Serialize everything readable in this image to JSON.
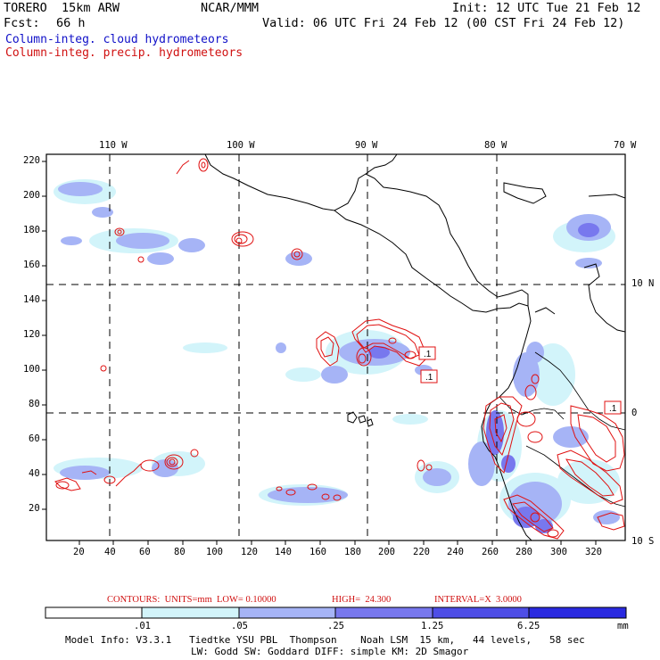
{
  "header": {
    "model": "TORERO  15km ARW",
    "center": "NCAR/MMM",
    "init": "Init: 12 UTC Tue 21 Feb 12",
    "fcst_label": "Fcst:",
    "fcst_value": "66 h",
    "valid": "Valid: 06 UTC Fri 24 Feb 12 (00 CST Fri 24 Feb 12)"
  },
  "fields": {
    "cloud": "Column-integ. cloud hydrometeors",
    "precip": "Column-integ. precip. hydrometeors"
  },
  "map": {
    "lon_labels": [
      "110 W",
      "100 W",
      "90 W",
      "80 W",
      "70 W"
    ],
    "lat_labels": [
      "10 N",
      "0",
      "10 S"
    ],
    "y_ticks": [
      "220",
      "200",
      "180",
      "160",
      "140",
      "120",
      "100",
      "80",
      "60",
      "40",
      "20"
    ],
    "x_ticks": [
      "20",
      "40",
      "60",
      "80",
      "100",
      "120",
      "140",
      "160",
      "180",
      "200",
      "220",
      "240",
      "260",
      "280",
      "300",
      "320"
    ],
    "contour_labels": [
      ".1",
      ".1",
      ".1"
    ]
  },
  "contour_info": {
    "contours": "CONTOURS:  UNITS=mm  LOW= 0.10000",
    "high": "HIGH=  24.300",
    "interval": "INTERVAL=X  3.0000"
  },
  "colorbar": {
    "unit": "mm",
    "levels": [
      ".01",
      ".05",
      ".25",
      "1.25",
      "6.25"
    ],
    "colors": [
      "#ffffff",
      "#d2f4fa",
      "#a6b4f6",
      "#7878ee",
      "#4e4ee6",
      "#2a2ae0"
    ]
  },
  "model_info": {
    "line1": "Model Info: V3.3.1   Tiedtke YSU PBL  Thompson    Noah LSM  15 km,   44 levels,   58 sec",
    "line2": "LW: Godd SW: Goddard DIFF: simple KM: 2D Smagor"
  }
}
